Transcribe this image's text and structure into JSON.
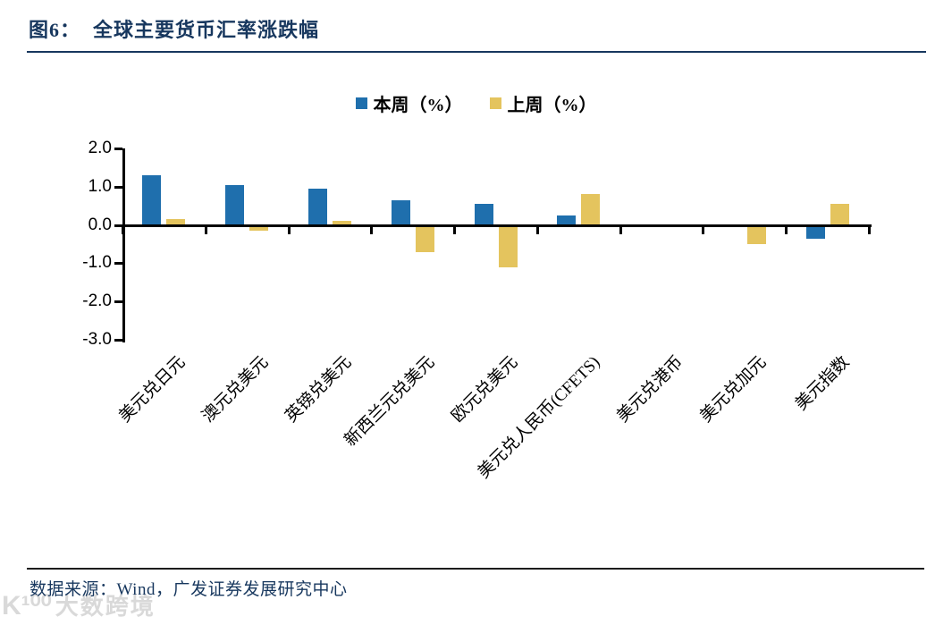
{
  "title": {
    "prefix": "图6：",
    "text": "全球主要货币汇率涨跌幅"
  },
  "chart_data": {
    "type": "bar",
    "title": "全球主要货币汇率涨跌幅",
    "categories": [
      "美元兑日元",
      "澳元兑美元",
      "英镑兑美元",
      "新西兰元兑美元",
      "欧元兑美元",
      "美元兑人民币(CFETS)",
      "美元兑港币",
      "美元兑加元",
      "美元指数"
    ],
    "series": [
      {
        "name": "本周（%）",
        "color": "#1F6FAD",
        "values": [
          1.3,
          1.05,
          0.95,
          0.65,
          0.55,
          0.25,
          0.0,
          0.0,
          -0.35
        ]
      },
      {
        "name": "上周（%）",
        "color": "#E4C45E",
        "values": [
          0.15,
          -0.15,
          0.1,
          -0.7,
          -1.1,
          0.8,
          0.0,
          -0.5,
          0.55
        ]
      }
    ],
    "xlabel": "",
    "ylabel": "",
    "ylim": [
      -3.0,
      2.0
    ],
    "yticks": [
      "2.0",
      "1.0",
      "0.0",
      "-1.0",
      "-2.0",
      "-3.0"
    ],
    "grid": false,
    "legend_position": "top",
    "bar_label_rotation_deg": 45
  },
  "footer": {
    "source_text": "数据来源：Wind，广发证券发展研究中心"
  },
  "watermark": {
    "logo": "K¹⁰⁰",
    "text": "大数跨境"
  },
  "colors": {
    "title_navy": "#17375E",
    "this_week_blue": "#1F6FAD",
    "last_week_yellow": "#E4C45E",
    "axis_black": "#000000"
  }
}
